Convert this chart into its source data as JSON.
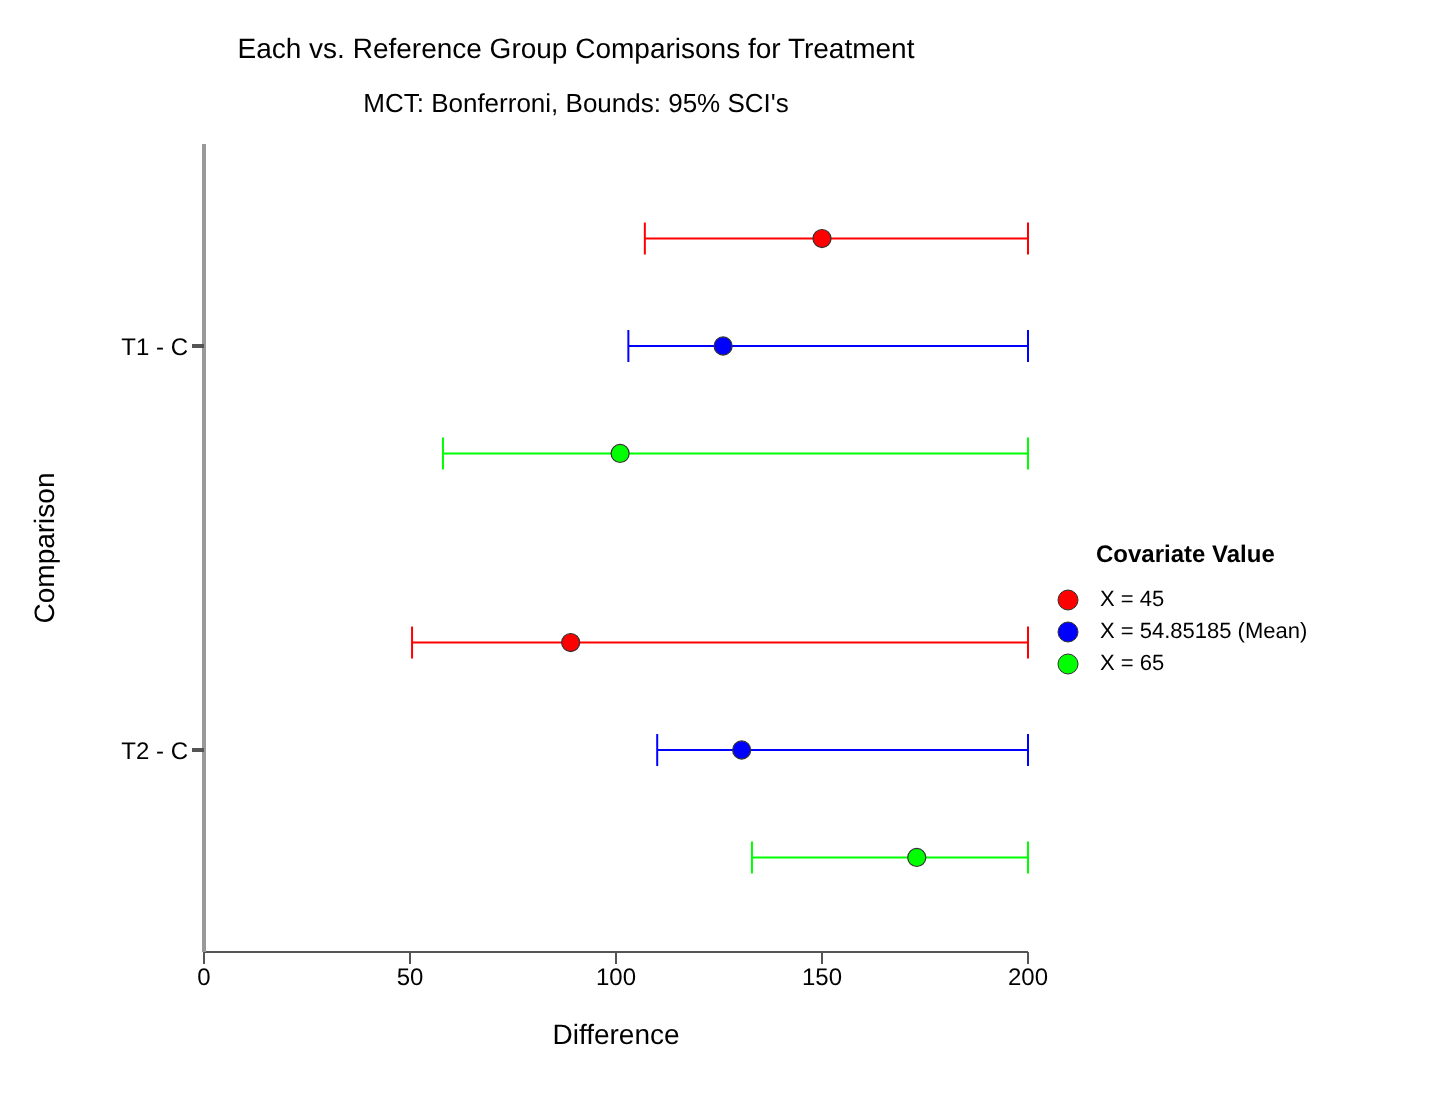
{
  "chart_data": {
    "type": "scatter",
    "title": "Each vs. Reference Group Comparisons for Treatment",
    "subtitle": "MCT: Bonferroni, Bounds: 95% SCI's",
    "xlabel": "Difference",
    "ylabel": "Comparison",
    "legend_title": "Covariate Value",
    "orientation": "horizontal",
    "categories": [
      "T1 - C",
      "T2 - C"
    ],
    "xlim": [
      0,
      200
    ],
    "xticks": [
      0,
      50,
      100,
      150,
      200
    ],
    "legend": "right",
    "marker": "circle",
    "series": [
      {
        "name": "X = 45",
        "color": "#ff0000",
        "values": [
          150,
          89
        ],
        "errors": [
          [
            107,
            200
          ],
          [
            50.5,
            200
          ]
        ]
      },
      {
        "name": "X = 54.85185 (Mean)",
        "color": "#0000ff",
        "values": [
          126,
          130.5
        ],
        "errors": [
          [
            103,
            200
          ],
          [
            110,
            200
          ]
        ]
      },
      {
        "name": "X = 65",
        "color": "#00ff00",
        "values": [
          101,
          173
        ],
        "errors": [
          [
            58,
            200
          ],
          [
            133,
            200
          ]
        ]
      }
    ]
  }
}
